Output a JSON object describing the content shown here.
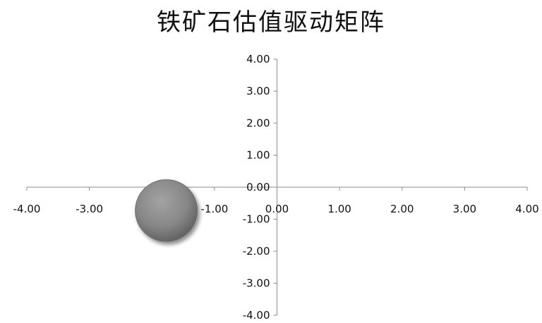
{
  "chart_data": {
    "type": "bubble",
    "title": "铁矿石估值驱动矩阵",
    "xlabel": "",
    "ylabel": "",
    "xlim": [
      -4,
      4
    ],
    "ylim": [
      -4,
      4
    ],
    "x_ticks": [
      "-4.00",
      "-3.00",
      "-2.00",
      "-1.00",
      "0.00",
      "1.00",
      "2.00",
      "3.00",
      "4.00"
    ],
    "y_ticks": [
      "4.00",
      "3.00",
      "2.00",
      "1.00",
      "0.00",
      "-1.00",
      "-2.00",
      "-3.00",
      "-4.00"
    ],
    "grid": false,
    "legend": "none",
    "points": [
      {
        "x": -1.77,
        "y": -0.73,
        "color": "#7f7f7f"
      }
    ]
  }
}
